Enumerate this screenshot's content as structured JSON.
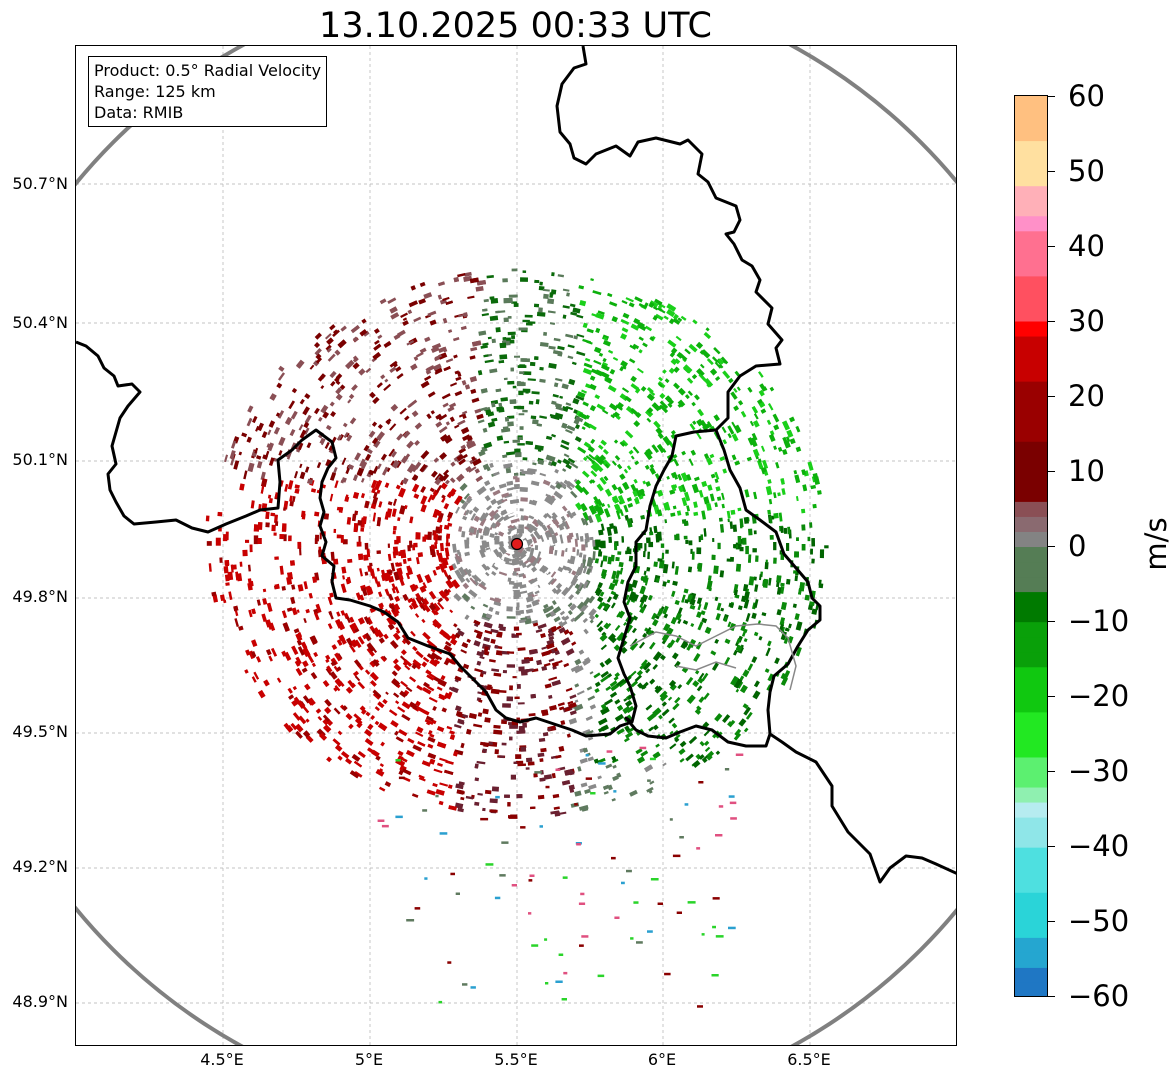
{
  "title": "13.10.2025 00:33 UTC",
  "info": {
    "product": "Product: 0.5° Radial Velocity",
    "range": "Range: 125 km",
    "source": "Data: RMIB"
  },
  "axes": {
    "lat_labels": [
      "50.7°N",
      "50.4°N",
      "50.1°N",
      "49.8°N",
      "49.5°N",
      "49.2°N",
      "48.9°N"
    ],
    "lon_labels": [
      "4.5°E",
      "5°E",
      "5.5°E",
      "6°E",
      "6.5°E"
    ]
  },
  "colorbar": {
    "label": "m/s",
    "min": -60,
    "max": 60,
    "tick_labels": [
      "60",
      "50",
      "40",
      "30",
      "20",
      "10",
      "0",
      "−10",
      "−20",
      "−30",
      "−40",
      "−50",
      "−60"
    ]
  },
  "radar": {
    "name": "radar-site-marker",
    "color": "#e11b1b"
  },
  "colors": {
    "outbound_red": "#c80000",
    "dark_red": "#7a0000",
    "inbound_green": "#10b810",
    "dark_green": "#006400",
    "grey": "#8a8a8a",
    "range_ring": "#808080"
  }
}
